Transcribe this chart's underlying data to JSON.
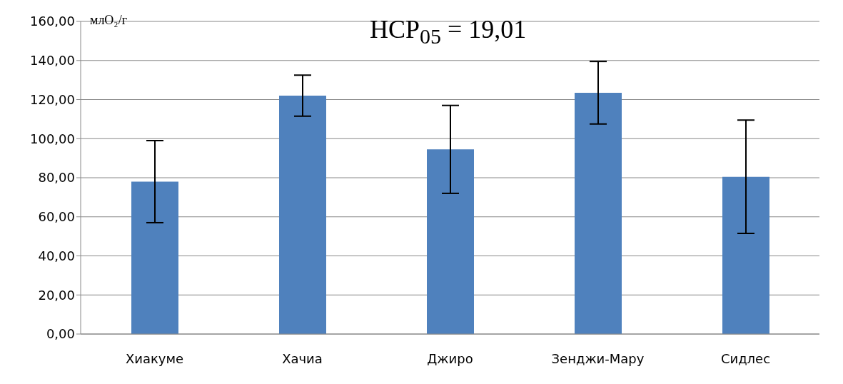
{
  "chart_data": {
    "type": "bar",
    "ylabel": "млO₂/г",
    "annotations": [
      "НСР$_{05}$ = 19,01"
    ],
    "categories": [
      "Хиакуме",
      "Хачиа",
      "Джиро",
      "Зенджи-Мару",
      "Сидлес"
    ],
    "values": [
      78,
      122,
      94.5,
      123.5,
      80.5
    ],
    "errors": [
      21,
      10.5,
      22.5,
      16,
      29
    ],
    "color": "#4f81bd",
    "ylim": [
      0,
      160
    ],
    "yticks": [
      {
        "value": 0,
        "label": "0,00"
      },
      {
        "value": 20,
        "label": "20,00"
      },
      {
        "value": 40,
        "label": "40,00"
      },
      {
        "value": 60,
        "label": "60,00"
      },
      {
        "value": 80,
        "label": "80,00"
      },
      {
        "value": 100,
        "label": "100,00"
      },
      {
        "value": 120,
        "label": "120,00"
      },
      {
        "value": 140,
        "label": "140,00"
      },
      {
        "value": 160,
        "label": "160,00"
      }
    ],
    "grid": "y"
  }
}
